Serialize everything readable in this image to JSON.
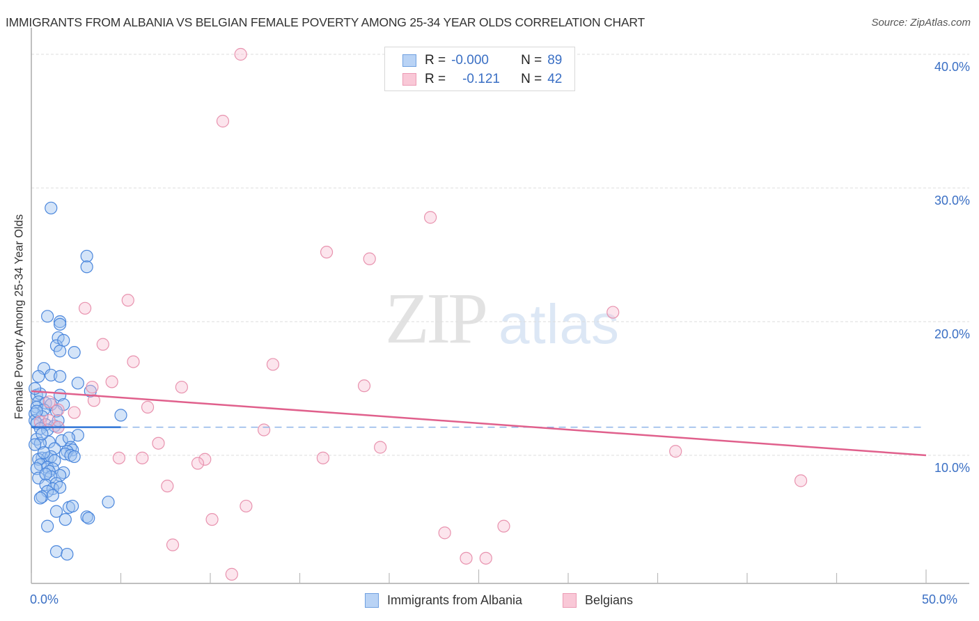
{
  "header": {
    "title": "IMMIGRANTS FROM ALBANIA VS BELGIAN FEMALE POVERTY AMONG 25-34 YEAR OLDS CORRELATION CHART",
    "source": "Source: ZipAtlas.com"
  },
  "watermark": {
    "zip": "ZIP",
    "atlas": "atlas"
  },
  "legend": {
    "series": [
      {
        "name": "Immigrants from Albania",
        "r_label": "R =",
        "r_value": "-0.000",
        "n_label": "N =",
        "n_value": "89",
        "fill": "#b9d3f5",
        "stroke": "#6fa0e0"
      },
      {
        "name": "Belgians",
        "r_label": "R =",
        "r_value": "-0.121",
        "n_label": "N =",
        "n_value": "42",
        "fill": "#f9c8d7",
        "stroke": "#ec9ab4"
      }
    ]
  },
  "axes": {
    "y_label": "Female Poverty Among 25-34 Year Olds",
    "y_ticks": [
      "40.0%",
      "30.0%",
      "20.0%",
      "10.0%"
    ],
    "x_ticks": [
      "0.0%",
      "50.0%"
    ]
  },
  "colors": {
    "blue_point_fill": "rgba(160,195,240,0.45)",
    "blue_point_stroke": "#4a86dc",
    "pink_point_fill": "rgba(248,190,210,0.40)",
    "pink_point_stroke": "#e892ae",
    "blue_trend": "#2f74d6",
    "pink_trend": "#e0608c",
    "tick_label": "#3a6fc4",
    "grid": "#dddddd"
  },
  "chart_data": {
    "type": "scatter",
    "title": "IMMIGRANTS FROM ALBANIA VS BELGIAN FEMALE POVERTY AMONG 25-34 YEAR OLDS CORRELATION CHART",
    "xlabel": "",
    "ylabel": "Female Poverty Among 25-34 Year Olds",
    "xlim": [
      0,
      50
    ],
    "ylim": [
      0,
      41
    ],
    "x_tick_labels": [
      "0.0%",
      "50.0%"
    ],
    "y_tick_labels": [
      "10.0%",
      "20.0%",
      "30.0%",
      "40.0%"
    ],
    "grid": true,
    "legend_position": "top-center",
    "series": [
      {
        "name": "Immigrants from Albania",
        "R": -0.0,
        "N": 89,
        "trend": {
          "x": [
            0,
            5.0
          ],
          "y": [
            12.1,
            12.1
          ],
          "dashed_extension_to_x": 49.8
        },
        "points": [
          [
            1.1,
            28.5
          ],
          [
            3.1,
            24.9
          ],
          [
            3.1,
            24.1
          ],
          [
            0.9,
            20.4
          ],
          [
            1.6,
            20.0
          ],
          [
            1.6,
            19.8
          ],
          [
            1.5,
            18.8
          ],
          [
            1.4,
            18.2
          ],
          [
            1.8,
            18.6
          ],
          [
            1.6,
            17.8
          ],
          [
            2.4,
            17.7
          ],
          [
            0.7,
            16.5
          ],
          [
            0.4,
            15.9
          ],
          [
            1.1,
            16.0
          ],
          [
            1.6,
            15.9
          ],
          [
            2.6,
            15.4
          ],
          [
            3.3,
            14.8
          ],
          [
            0.3,
            14.5
          ],
          [
            0.5,
            14.6
          ],
          [
            1.6,
            14.5
          ],
          [
            0.4,
            14.0
          ],
          [
            0.8,
            13.9
          ],
          [
            1.1,
            13.8
          ],
          [
            1.8,
            13.8
          ],
          [
            0.3,
            13.6
          ],
          [
            0.7,
            13.4
          ],
          [
            0.2,
            13.1
          ],
          [
            0.6,
            12.9
          ],
          [
            1.4,
            13.3
          ],
          [
            5.0,
            13.0
          ],
          [
            0.2,
            12.6
          ],
          [
            0.3,
            12.4
          ],
          [
            0.8,
            12.3
          ],
          [
            1.3,
            12.2
          ],
          [
            0.5,
            12.0
          ],
          [
            1.5,
            12.1
          ],
          [
            0.9,
            11.9
          ],
          [
            2.6,
            11.5
          ],
          [
            0.3,
            11.2
          ],
          [
            1.0,
            11.0
          ],
          [
            1.7,
            11.1
          ],
          [
            0.5,
            10.9
          ],
          [
            0.2,
            10.8
          ],
          [
            2.1,
            11.3
          ],
          [
            2.2,
            10.6
          ],
          [
            2.3,
            10.4
          ],
          [
            1.3,
            10.5
          ],
          [
            2.0,
            10.3
          ],
          [
            1.9,
            10.1
          ],
          [
            2.2,
            10.0
          ],
          [
            0.6,
            9.8
          ],
          [
            0.9,
            9.8
          ],
          [
            1.1,
            9.9
          ],
          [
            0.4,
            9.7
          ],
          [
            1.3,
            9.6
          ],
          [
            0.5,
            9.3
          ],
          [
            0.9,
            9.1
          ],
          [
            1.2,
            9.0
          ],
          [
            0.3,
            9.0
          ],
          [
            1.0,
            8.8
          ],
          [
            1.8,
            8.7
          ],
          [
            1.6,
            8.5
          ],
          [
            0.4,
            8.3
          ],
          [
            1.1,
            8.4
          ],
          [
            0.8,
            7.8
          ],
          [
            1.4,
            7.9
          ],
          [
            1.2,
            7.5
          ],
          [
            0.9,
            7.3
          ],
          [
            1.6,
            7.6
          ],
          [
            0.6,
            6.9
          ],
          [
            0.5,
            6.8
          ],
          [
            4.3,
            6.5
          ],
          [
            2.1,
            6.1
          ],
          [
            2.3,
            6.2
          ],
          [
            1.4,
            5.8
          ],
          [
            3.1,
            5.4
          ],
          [
            3.2,
            5.3
          ],
          [
            1.9,
            5.2
          ],
          [
            0.9,
            4.7
          ],
          [
            1.4,
            2.8
          ],
          [
            2.0,
            2.6
          ],
          [
            0.2,
            15.0
          ],
          [
            0.3,
            13.3
          ],
          [
            0.6,
            11.6
          ],
          [
            0.7,
            10.2
          ],
          [
            1.5,
            12.6
          ],
          [
            0.8,
            8.6
          ],
          [
            1.2,
            7.0
          ],
          [
            2.4,
            9.9
          ]
        ]
      },
      {
        "name": "Belgians",
        "R": -0.121,
        "N": 42,
        "trend": {
          "x": [
            0,
            50
          ],
          "y": [
            14.8,
            10.0
          ]
        },
        "points": [
          [
            11.7,
            40.0
          ],
          [
            10.7,
            35.0
          ],
          [
            22.3,
            27.8
          ],
          [
            16.5,
            25.2
          ],
          [
            18.9,
            24.7
          ],
          [
            3.0,
            21.0
          ],
          [
            5.4,
            21.6
          ],
          [
            32.5,
            20.7
          ],
          [
            4.0,
            18.3
          ],
          [
            5.7,
            17.0
          ],
          [
            13.5,
            16.8
          ],
          [
            4.5,
            15.5
          ],
          [
            8.4,
            15.1
          ],
          [
            18.6,
            15.2
          ],
          [
            3.4,
            15.1
          ],
          [
            3.5,
            14.1
          ],
          [
            6.5,
            13.6
          ],
          [
            1.0,
            14.0
          ],
          [
            1.5,
            13.4
          ],
          [
            2.4,
            13.2
          ],
          [
            0.5,
            12.5
          ],
          [
            1.0,
            12.6
          ],
          [
            1.5,
            12.1
          ],
          [
            13.0,
            11.9
          ],
          [
            7.1,
            10.9
          ],
          [
            19.5,
            10.6
          ],
          [
            4.9,
            9.8
          ],
          [
            6.2,
            9.8
          ],
          [
            9.7,
            9.7
          ],
          [
            9.3,
            9.4
          ],
          [
            16.3,
            9.8
          ],
          [
            36.0,
            10.3
          ],
          [
            43.0,
            8.1
          ],
          [
            7.6,
            7.7
          ],
          [
            12.0,
            6.2
          ],
          [
            10.1,
            5.2
          ],
          [
            23.1,
            4.2
          ],
          [
            26.4,
            4.7
          ],
          [
            7.9,
            3.3
          ],
          [
            24.3,
            2.3
          ],
          [
            25.4,
            2.3
          ],
          [
            11.2,
            1.1
          ]
        ]
      }
    ]
  }
}
